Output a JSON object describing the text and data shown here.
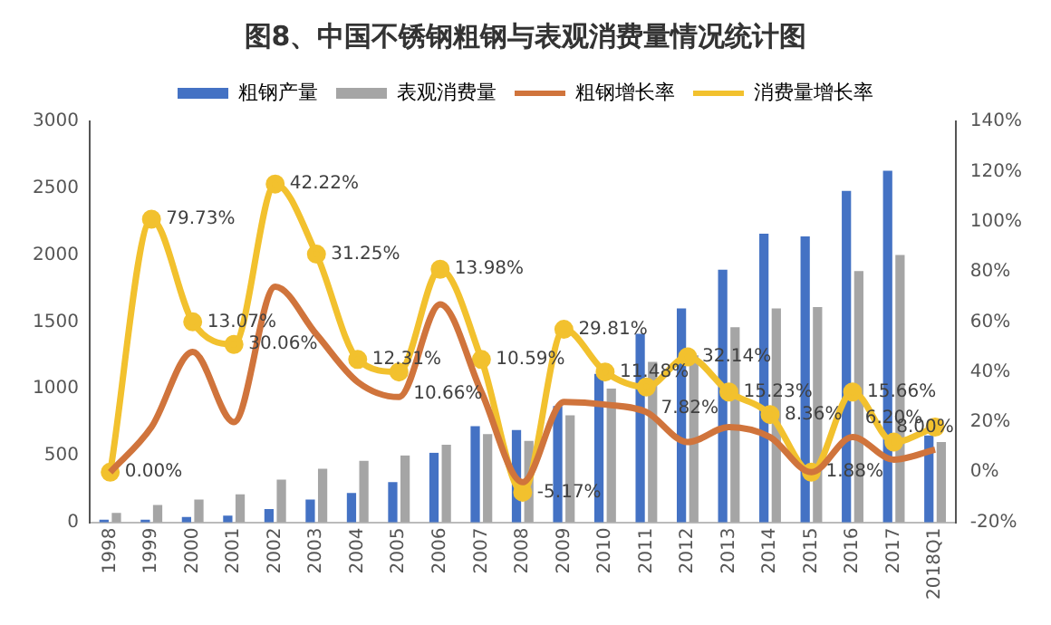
{
  "chart_data": {
    "type": "bar",
    "title": "图8、中国不锈钢粗钢与表观消费量情况统计图",
    "categories": [
      "1998",
      "1999",
      "2000",
      "2001",
      "2002",
      "2003",
      "2004",
      "2005",
      "2006",
      "2007",
      "2008",
      "2009",
      "2010",
      "2011",
      "2012",
      "2013",
      "2014",
      "2015",
      "2016",
      "2017",
      "2018Q1"
    ],
    "series": [
      {
        "name": "粗钢产量",
        "color": "#4472c4",
        "values": [
          20,
          20,
          40,
          50,
          100,
          170,
          220,
          300,
          520,
          720,
          690,
          870,
          1110,
          1410,
          1600,
          1890,
          2160,
          2140,
          2480,
          2630,
          650
        ]
      },
      {
        "name": "表观消费量",
        "color": "#a5a5a5",
        "values": [
          70,
          130,
          170,
          210,
          320,
          400,
          460,
          500,
          580,
          660,
          610,
          800,
          1000,
          1200,
          1250,
          1460,
          1600,
          1610,
          1880,
          2000,
          600
        ]
      },
      {
        "name": "粗钢增长率",
        "type": "line",
        "axis": "y2",
        "color": "#d0743c",
        "marker": "none",
        "values": [
          0,
          18,
          48,
          20,
          74,
          55,
          36,
          30,
          67,
          32,
          -4,
          28,
          27,
          24,
          12,
          18,
          14,
          0,
          14,
          5,
          9
        ]
      },
      {
        "name": "消费量增长率",
        "type": "line",
        "axis": "y2",
        "color": "#f2c12e",
        "marker": "circle",
        "values": [
          0,
          101,
          60,
          51,
          115,
          87,
          45,
          40,
          81,
          45,
          -8,
          57,
          40,
          34,
          46,
          32,
          23,
          0,
          32,
          12,
          18
        ]
      }
    ],
    "ylim": [
      0,
      3000
    ],
    "yticks": [
      0,
      500,
      1000,
      1500,
      2000,
      2500,
      3000
    ],
    "y2lim": [
      -20,
      140
    ],
    "y2ticks": [
      {
        "value": -20,
        "label": "-20%"
      },
      {
        "value": 0,
        "label": "0%"
      },
      {
        "value": 20,
        "label": "20%"
      },
      {
        "value": 40,
        "label": "40%"
      },
      {
        "value": 60,
        "label": "60%"
      },
      {
        "value": 80,
        "label": "80%"
      },
      {
        "value": 100,
        "label": "100%"
      },
      {
        "value": 120,
        "label": "120%"
      },
      {
        "value": 140,
        "label": "140%"
      }
    ],
    "grid": false,
    "legend": "top",
    "annotations": [
      "0.00%",
      "79.73%",
      "13.07%",
      "30.06%",
      "42.22%",
      "31.25%",
      "12.31%",
      "10.66%",
      "13.98%",
      "10.59%",
      "-5.17%",
      "29.81%",
      "11.48%",
      "7.82%",
      "32.14%",
      "15.23%",
      "8.36%",
      "1.88%",
      "15.66%",
      "6.20%",
      "8.00%"
    ]
  }
}
